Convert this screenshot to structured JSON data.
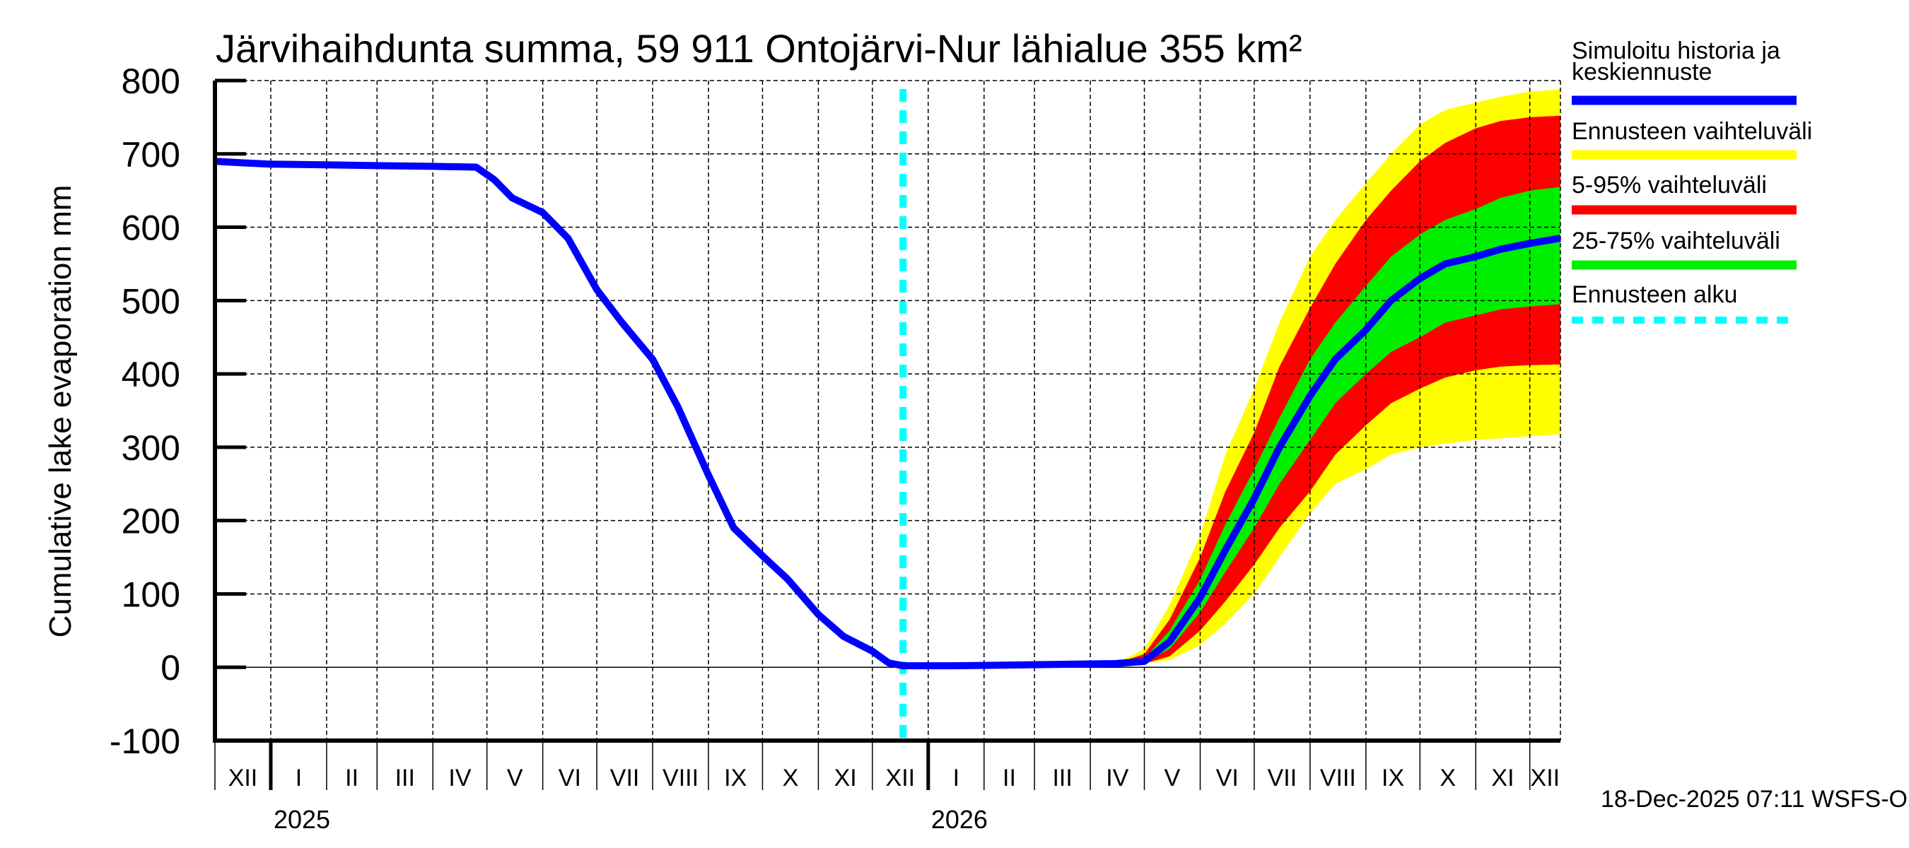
{
  "chart_data": {
    "type": "area",
    "title": "Järvihaihdunta summa, 59 911 Ontojärvi-Nur lähialue 355 km²",
    "ylabel": "Cumulative lake evaporation   mm",
    "xlabel": "",
    "ylim": [
      -100,
      800
    ],
    "yticks": [
      -100,
      0,
      100,
      200,
      300,
      400,
      500,
      600,
      700,
      800
    ],
    "xlim": [
      "2024-12-01",
      "2026-12-18"
    ],
    "grid": true,
    "month_labels": [
      "XII",
      "I",
      "II",
      "III",
      "IV",
      "V",
      "VI",
      "VII",
      "VIII",
      "IX",
      "X",
      "XI",
      "XII",
      "I",
      "II",
      "III",
      "IV",
      "V",
      "VI",
      "VII",
      "VIII",
      "IX",
      "X",
      "XI",
      "XII"
    ],
    "month_starts": [
      "2024-12-01",
      "2025-01-01",
      "2025-02-01",
      "2025-03-01",
      "2025-04-01",
      "2025-05-01",
      "2025-06-01",
      "2025-07-01",
      "2025-08-01",
      "2025-09-01",
      "2025-10-01",
      "2025-11-01",
      "2025-12-01",
      "2026-01-01",
      "2026-02-01",
      "2026-03-01",
      "2026-04-01",
      "2026-05-01",
      "2026-06-01",
      "2026-07-01",
      "2026-08-01",
      "2026-09-01",
      "2026-10-01",
      "2026-11-01",
      "2026-12-01"
    ],
    "year_labels": [
      {
        "label": "2025",
        "date": "2025-01-01"
      },
      {
        "label": "2026",
        "date": "2026-01-01"
      }
    ],
    "forecast_start": "2025-12-18",
    "history": {
      "name": "Simuloitu historia ja keskiennuste",
      "x": [
        "2024-12-01",
        "2024-12-15",
        "2025-01-01",
        "2025-02-01",
        "2025-03-01",
        "2025-04-01",
        "2025-04-25",
        "2025-05-05",
        "2025-05-15",
        "2025-06-01",
        "2025-06-15",
        "2025-07-01",
        "2025-07-15",
        "2025-08-01",
        "2025-08-15",
        "2025-09-01",
        "2025-09-15",
        "2025-10-01",
        "2025-10-15",
        "2025-11-01",
        "2025-11-15",
        "2025-12-01",
        "2025-12-10",
        "2025-12-18"
      ],
      "y": [
        690,
        688,
        686,
        685,
        684,
        683,
        682,
        665,
        640,
        620,
        585,
        515,
        470,
        420,
        355,
        262,
        190,
        152,
        120,
        72,
        42,
        22,
        6,
        2
      ]
    },
    "forecast": {
      "x": [
        "2025-12-18",
        "2026-01-15",
        "2026-02-15",
        "2026-03-15",
        "2026-04-15",
        "2026-05-01",
        "2026-05-15",
        "2026-06-01",
        "2026-06-15",
        "2026-07-01",
        "2026-07-15",
        "2026-08-01",
        "2026-08-15",
        "2026-09-01",
        "2026-09-15",
        "2026-10-01",
        "2026-10-15",
        "2026-11-01",
        "2026-11-15",
        "2026-12-01",
        "2026-12-18"
      ],
      "median": [
        2,
        2,
        3,
        4,
        5,
        8,
        35,
        95,
        160,
        230,
        300,
        370,
        420,
        460,
        500,
        530,
        550,
        560,
        570,
        578,
        585
      ],
      "p25": [
        2,
        2,
        3,
        4,
        5,
        7,
        25,
        75,
        130,
        190,
        250,
        310,
        360,
        400,
        430,
        450,
        470,
        480,
        488,
        492,
        495
      ],
      "p75": [
        2,
        2,
        3,
        4,
        5,
        12,
        50,
        120,
        195,
        270,
        340,
        420,
        470,
        520,
        560,
        590,
        610,
        625,
        640,
        650,
        655
      ],
      "p5": [
        2,
        2,
        3,
        4,
        5,
        5,
        15,
        50,
        90,
        140,
        190,
        240,
        290,
        330,
        360,
        380,
        395,
        405,
        410,
        412,
        413
      ],
      "p95": [
        2,
        2,
        3,
        4,
        5,
        18,
        65,
        150,
        240,
        320,
        410,
        490,
        550,
        610,
        650,
        690,
        715,
        735,
        745,
        750,
        752
      ],
      "min": [
        2,
        2,
        3,
        4,
        5,
        5,
        10,
        30,
        60,
        100,
        150,
        210,
        250,
        270,
        290,
        300,
        305,
        310,
        312,
        315,
        318
      ],
      "max": [
        2,
        2,
        3,
        4,
        5,
        25,
        85,
        180,
        290,
        380,
        470,
        560,
        610,
        660,
        700,
        740,
        760,
        770,
        778,
        785,
        788
      ]
    },
    "legend": [
      {
        "label": "Simuloitu historia ja keskiennuste",
        "color": "#0000ff",
        "style": "solid"
      },
      {
        "label": "Ennusteen vaihteluväli",
        "color": "#ffff00",
        "style": "solid"
      },
      {
        "label": "5-95% vaihteluväli",
        "color": "#ff0000",
        "style": "solid"
      },
      {
        "label": "25-75% vaihteluväli",
        "color": "#00ee00",
        "style": "solid"
      },
      {
        "label": "Ennusteen alku",
        "color": "#00ffff",
        "style": "dashed"
      }
    ],
    "legend_position": "right",
    "colors": {
      "median": "#0000ff",
      "range": "#ffff00",
      "p5_95": "#ff0000",
      "p25_75": "#00ee00",
      "forecast_start": "#00ffff"
    },
    "footer": "18-Dec-2025 07:11 WSFS-O"
  }
}
